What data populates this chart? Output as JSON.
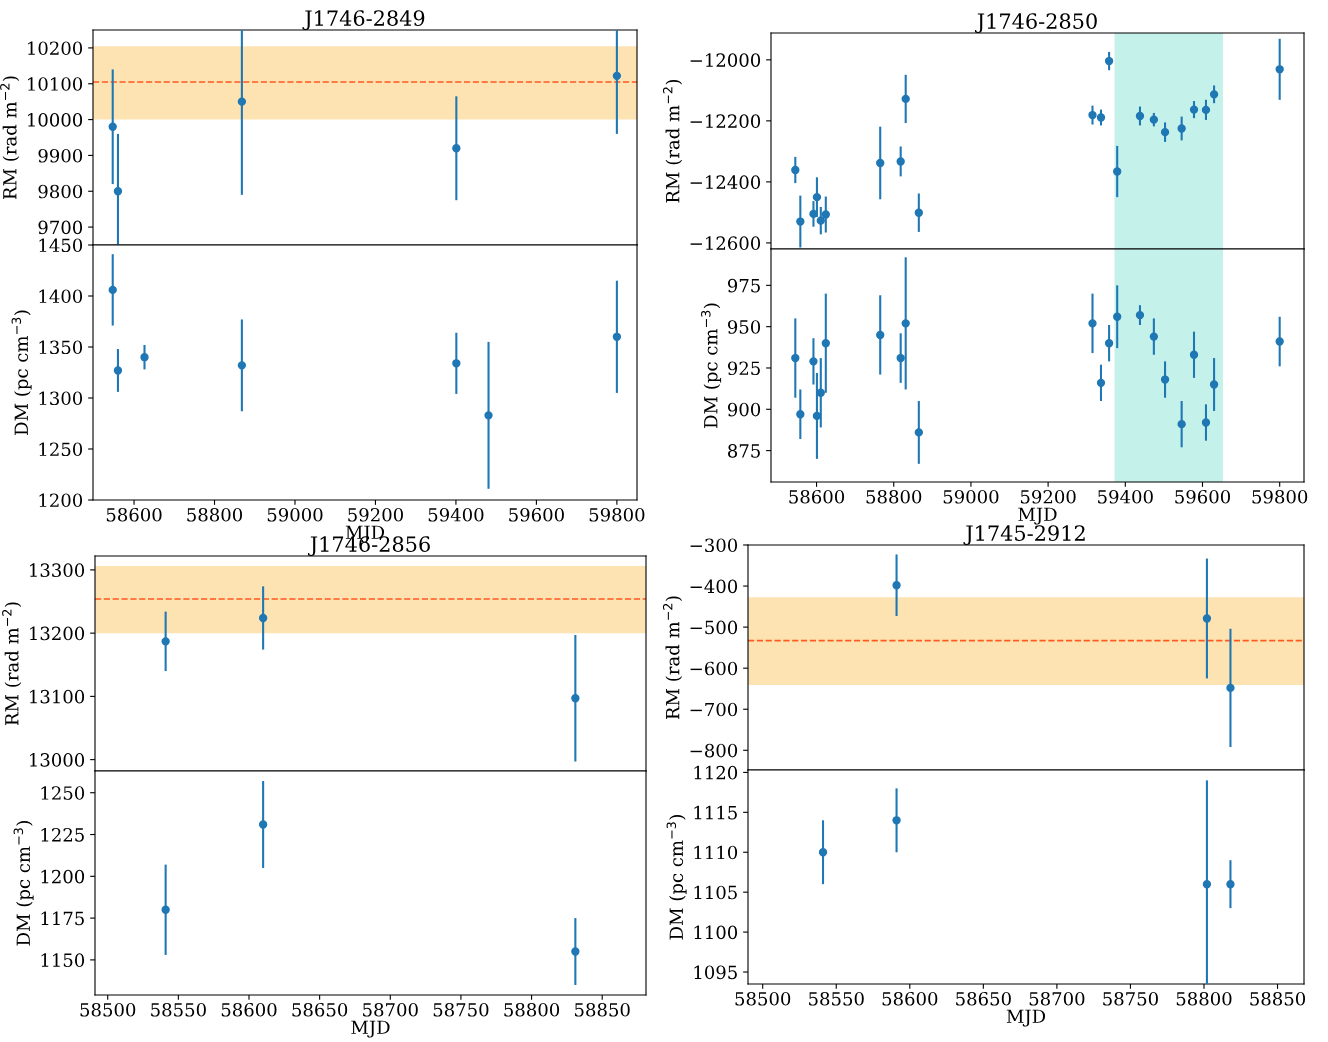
{
  "chart_data": [
    {
      "type": "scatter",
      "title": "J1746-2849",
      "ylabel": "RM (rad m$^{−2}$)",
      "marker": "circle",
      "tick_labels": "y",
      "grid": false,
      "xlim": [
        58498,
        59850
      ],
      "xticks": [
        58600,
        58800,
        59000,
        59200,
        59400,
        59600,
        59800
      ],
      "ylim": [
        9650,
        10250
      ],
      "yticks": [
        9700,
        9800,
        9900,
        10000,
        10100,
        10200
      ],
      "bands": [
        {
          "axis": "y",
          "from": 10000,
          "to": 10205,
          "color": "#fde3b1"
        }
      ],
      "ref_lines": [
        {
          "axis": "y",
          "value": 10105,
          "color": "#ff5a1f",
          "line_style": "dashed"
        }
      ],
      "series": [
        {
          "color": "#1f77b4",
          "x": [
            58547,
            58560,
            58868,
            59401,
            59800
          ],
          "values": [
            9980,
            9800,
            10050,
            9920,
            10122
          ],
          "errors": [
            160,
            160,
            260,
            145,
            162
          ]
        }
      ]
    },
    {
      "type": "scatter",
      "xlabel": "MJD",
      "ylabel": "DM (pc cm$^{−3}$)",
      "marker": "circle",
      "grid": false,
      "xlim": [
        58498,
        59850
      ],
      "xticks": [
        58600,
        58800,
        59000,
        59200,
        59400,
        59600,
        59800
      ],
      "ylim": [
        1200,
        1450
      ],
      "yticks": [
        1200,
        1250,
        1300,
        1350,
        1400,
        1450
      ],
      "series": [
        {
          "color": "#1f77b4",
          "x": [
            58547,
            58560,
            58626,
            58868,
            59401,
            59481,
            59800
          ],
          "values": [
            1406,
            1327,
            1340,
            1332,
            1334,
            1283,
            1360
          ],
          "errors": [
            35,
            21,
            12,
            45,
            30,
            72,
            55
          ]
        }
      ]
    },
    {
      "type": "scatter",
      "title": "J1746-2850",
      "ylabel": "RM (rad m$^{−2}$)",
      "marker": "circle",
      "tick_labels": "y",
      "grid": false,
      "xlim": [
        58482,
        59863
      ],
      "xticks": [
        58600,
        58800,
        59000,
        59200,
        59400,
        59600,
        59800
      ],
      "ylim": [
        -12620,
        -11912
      ],
      "yticks": [
        {
          "value": -12600,
          "label": "−12600"
        },
        {
          "value": -12400,
          "label": "−12400"
        },
        {
          "value": -12200,
          "label": "−12200"
        },
        {
          "value": -12000,
          "label": "−12000"
        }
      ],
      "bands": [
        {
          "axis": "x",
          "from": 59372,
          "to": 59653,
          "color": "#c5f1eb"
        }
      ],
      "series": [
        {
          "color": "#1f77b4",
          "x": [
            58545,
            58558,
            58592,
            58601,
            58611,
            58624,
            58765,
            58818,
            58831,
            58865,
            59315,
            59337,
            59358,
            59379,
            59438,
            59474,
            59503,
            59546,
            59578,
            59609,
            59630,
            59800
          ],
          "values": [
            -12361,
            -12530,
            -12505,
            -12450,
            -12527,
            -12507,
            -12338,
            -12333,
            -12128,
            -12501,
            -12181,
            -12189,
            -12004,
            -12366,
            -12184,
            -12196,
            -12237,
            -12225,
            -12163,
            -12164,
            -12113,
            -12031
          ],
          "errors": [
            43,
            85,
            42,
            65,
            45,
            59,
            119,
            49,
            79,
            63,
            31,
            26,
            30,
            84,
            31,
            22,
            32,
            39,
            28,
            33,
            29,
            100
          ]
        }
      ]
    },
    {
      "type": "scatter",
      "xlabel": "MJD",
      "ylabel": "DM (pc cm$^{−3}$)",
      "marker": "circle",
      "grid": false,
      "xlim": [
        58482,
        59863
      ],
      "xticks": [
        58600,
        58800,
        59000,
        59200,
        59400,
        59600,
        59800
      ],
      "ylim": [
        856,
        997
      ],
      "yticks": [
        875,
        900,
        925,
        950,
        975
      ],
      "bands": [
        {
          "axis": "x",
          "from": 59372,
          "to": 59653,
          "color": "#c5f1eb"
        }
      ],
      "series": [
        {
          "color": "#1f77b4",
          "x": [
            58545,
            58558,
            58592,
            58601,
            58611,
            58624,
            58765,
            58818,
            58831,
            58865,
            59315,
            59337,
            59358,
            59379,
            59438,
            59474,
            59503,
            59546,
            59578,
            59609,
            59630,
            59800
          ],
          "values": [
            931,
            897,
            929,
            896,
            910,
            940,
            945,
            931,
            952,
            886,
            952,
            916,
            940,
            956,
            957,
            944,
            918,
            891,
            933,
            892,
            915,
            941
          ],
          "errors": [
            24,
            15,
            14,
            26,
            21,
            30,
            24,
            15,
            40,
            19,
            18,
            11,
            11,
            19,
            6,
            11,
            11,
            14,
            14,
            11,
            16,
            15
          ]
        }
      ]
    },
    {
      "type": "scatter",
      "title": "J1746-2856",
      "ylabel": "RM (rad m$^{−2}$)",
      "marker": "circle",
      "tick_labels": "y",
      "grid": false,
      "xlim": [
        58491,
        58881
      ],
      "xticks": [
        58500,
        58550,
        58600,
        58650,
        58700,
        58750,
        58800,
        58850
      ],
      "ylim": [
        12982,
        13322
      ],
      "yticks": [
        13000,
        13100,
        13200,
        13300
      ],
      "bands": [
        {
          "axis": "y",
          "from": 13200,
          "to": 13306,
          "color": "#fde3b1"
        }
      ],
      "ref_lines": [
        {
          "axis": "y",
          "value": 13254,
          "color": "#ff5a1f",
          "line_style": "dashed"
        }
      ],
      "series": [
        {
          "color": "#1f77b4",
          "x": [
            58541,
            58610,
            58831
          ],
          "values": [
            13187,
            13224,
            13097
          ],
          "errors": [
            47,
            50,
            100
          ]
        }
      ]
    },
    {
      "type": "scatter",
      "xlabel": "MJD",
      "ylabel": "DM (pc cm$^{−3}$)",
      "marker": "circle",
      "grid": false,
      "xlim": [
        58491,
        58881
      ],
      "xticks": [
        58500,
        58550,
        58600,
        58650,
        58700,
        58750,
        58800,
        58850
      ],
      "ylim": [
        1129,
        1263
      ],
      "yticks": [
        1150,
        1175,
        1200,
        1225,
        1250
      ],
      "series": [
        {
          "color": "#1f77b4",
          "x": [
            58541,
            58610,
            58831
          ],
          "values": [
            1180,
            1231,
            1155
          ],
          "errors": [
            27,
            26,
            20
          ]
        }
      ]
    },
    {
      "type": "scatter",
      "title": "J1745-2912",
      "ylabel": "RM (rad m$^{−2}$)",
      "marker": "circle",
      "tick_labels": "y",
      "grid": false,
      "xlim": [
        58490,
        58868
      ],
      "xticks": [
        58500,
        58550,
        58600,
        58650,
        58700,
        58750,
        58800,
        58850
      ],
      "ylim": [
        -848,
        -300
      ],
      "yticks": [
        {
          "value": -800,
          "label": "−800"
        },
        {
          "value": -700,
          "label": "−700"
        },
        {
          "value": -600,
          "label": "−600"
        },
        {
          "value": -500,
          "label": "−500"
        },
        {
          "value": -400,
          "label": "−400"
        },
        {
          "value": -300,
          "label": "−300"
        }
      ],
      "bands": [
        {
          "axis": "y",
          "from": -641,
          "to": -427,
          "color": "#fde3b1"
        }
      ],
      "ref_lines": [
        {
          "axis": "y",
          "value": -533,
          "color": "#ff5a1f",
          "line_style": "dashed"
        }
      ],
      "series": [
        {
          "color": "#1f77b4",
          "x": [
            58591,
            58802,
            58818
          ],
          "values": [
            -398,
            -479,
            -648
          ],
          "errors": [
            75,
            146,
            144
          ]
        }
      ]
    },
    {
      "type": "scatter",
      "xlabel": "MJD",
      "ylabel": "DM (pc cm$^{−3}$)",
      "marker": "circle",
      "grid": false,
      "xlim": [
        58490,
        58868
      ],
      "xticks": [
        58500,
        58550,
        58600,
        58650,
        58700,
        58750,
        58800,
        58850
      ],
      "ylim": [
        1093.5,
        1120.3
      ],
      "yticks": [
        1095,
        1100,
        1105,
        1110,
        1115,
        1120
      ],
      "series": [
        {
          "color": "#1f77b4",
          "x": [
            58541,
            58591,
            58802,
            58818
          ],
          "values": [
            1110,
            1114,
            1106,
            1106
          ],
          "errors": [
            4,
            4,
            13,
            3
          ]
        }
      ]
    }
  ]
}
